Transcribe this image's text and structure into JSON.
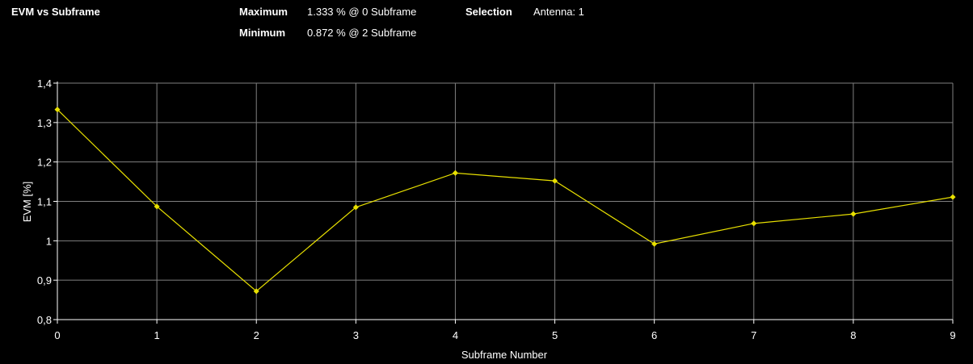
{
  "header": {
    "title": "EVM vs Subframe",
    "max_label": "Maximum",
    "max_value": "1.333 % @ 0 Subframe",
    "min_label": "Minimum",
    "min_value": "0.872 % @ 2 Subframe",
    "selection_label": "Selection",
    "selection_value": "Antenna: 1"
  },
  "chart_data": {
    "type": "line",
    "title": "EVM vs Subframe",
    "xlabel": "Subframe Number",
    "ylabel": "EVM [%]",
    "x": [
      0,
      1,
      2,
      3,
      4,
      5,
      6,
      7,
      8,
      9
    ],
    "xticks": [
      "0",
      "1",
      "2",
      "3",
      "4",
      "5",
      "6",
      "7",
      "8",
      "9"
    ],
    "yticks": [
      "0,8",
      "0,9",
      "1",
      "1,1",
      "1,2",
      "1,3",
      "1,4"
    ],
    "xlim": [
      0,
      9
    ],
    "ylim": [
      0.8,
      1.4
    ],
    "grid": true,
    "series": [
      {
        "values": [
          1.333,
          1.087,
          0.872,
          1.085,
          1.172,
          1.152,
          0.992,
          1.044,
          1.068,
          1.111
        ]
      }
    ],
    "colors": {
      "line": "#e8e000",
      "grid": "#808080",
      "axis": "#ffffff",
      "text": "#ffffff"
    }
  }
}
